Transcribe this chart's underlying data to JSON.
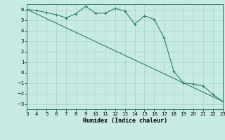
{
  "xlabel": "Humidex (Indice chaleur)",
  "xlim": [
    3,
    23
  ],
  "ylim": [
    -3.5,
    6.5
  ],
  "xticks": [
    3,
    4,
    5,
    6,
    7,
    8,
    9,
    10,
    11,
    12,
    13,
    14,
    15,
    16,
    17,
    18,
    19,
    20,
    21,
    22,
    23
  ],
  "yticks": [
    -3,
    -2,
    -1,
    0,
    1,
    2,
    3,
    4,
    5,
    6
  ],
  "bg_color": "#c8eae4",
  "line_color": "#2e7d6e",
  "grid_color": "#a8d4cc",
  "curve_x": [
    3,
    4,
    5,
    6,
    7,
    8,
    9,
    10,
    11,
    12,
    13,
    14,
    15,
    16,
    17,
    18,
    19,
    20,
    21,
    22,
    23
  ],
  "curve_y": [
    6.0,
    5.9,
    5.7,
    5.5,
    5.2,
    5.6,
    6.3,
    5.65,
    5.65,
    6.1,
    5.85,
    4.6,
    5.4,
    5.05,
    3.3,
    0.1,
    -1.0,
    -1.1,
    -1.3,
    -2.1,
    -2.75
  ],
  "trend_x": [
    3,
    23
  ],
  "trend_y": [
    6.0,
    -2.75
  ],
  "tick_fontsize": 5.0,
  "xlabel_fontsize": 6.0
}
